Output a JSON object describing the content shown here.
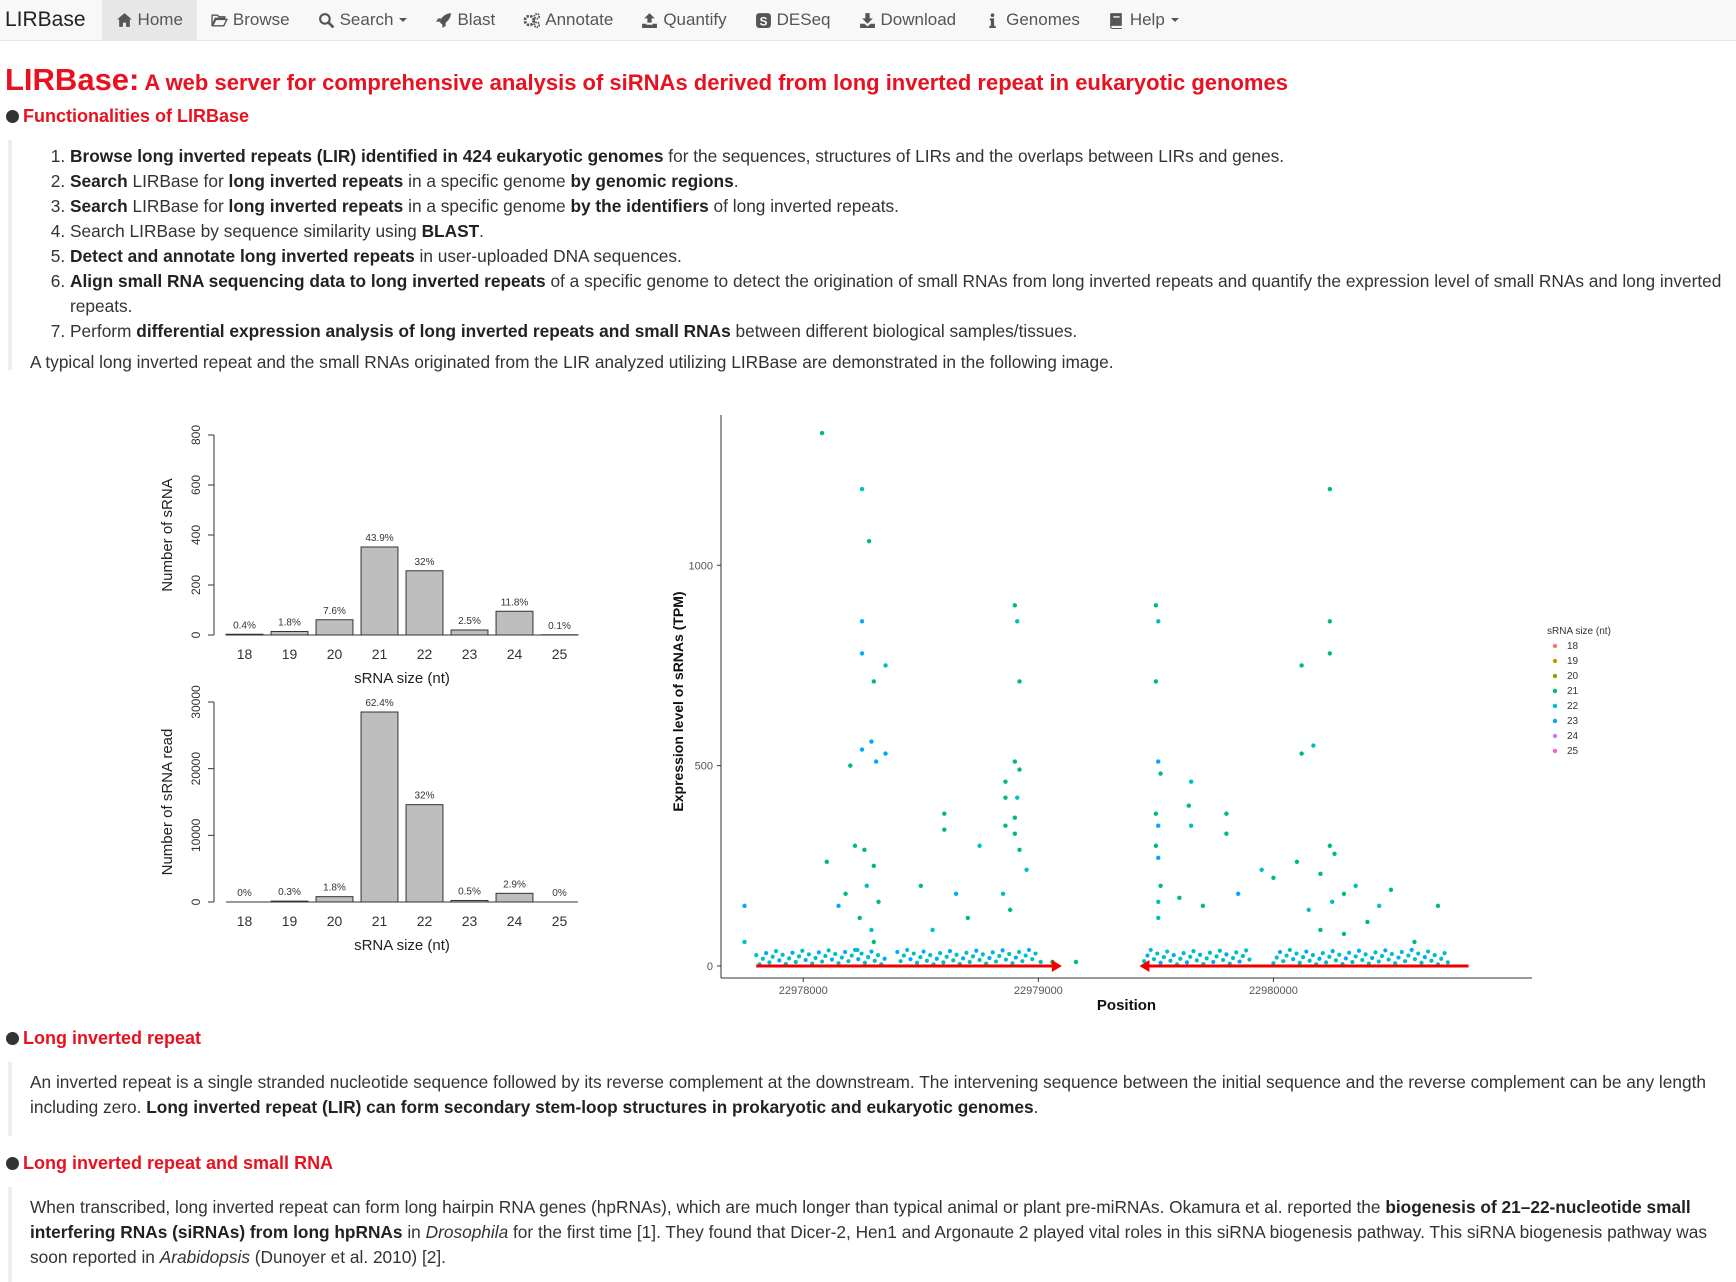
{
  "nav": {
    "brand": "LIRBase",
    "items": [
      {
        "label": "Home",
        "icon": "home-icon",
        "active": true
      },
      {
        "label": "Browse",
        "icon": "folder-open-icon"
      },
      {
        "label": "Search",
        "icon": "search-icon",
        "dropdown": true
      },
      {
        "label": "Blast",
        "icon": "rocket-icon"
      },
      {
        "label": "Annotate",
        "icon": "cogs-icon"
      },
      {
        "label": "Quantify",
        "icon": "upload-icon"
      },
      {
        "label": "DESeq",
        "icon": "deseq-icon"
      },
      {
        "label": "Download",
        "icon": "download-icon"
      },
      {
        "label": "Genomes",
        "icon": "info-icon"
      },
      {
        "label": "Help",
        "icon": "book-icon",
        "dropdown": true
      }
    ]
  },
  "title": {
    "main": "LIRBase:",
    "sub": "A web server for comprehensive analysis of siRNAs derived from long inverted repeat in eukaryotic genomes"
  },
  "functionalities": {
    "heading": "Functionalities of LIRBase",
    "items": [
      [
        "b:Browse long inverted repeats (LIR) identified in 424 eukaryotic genomes",
        " for the sequences, structures of LIRs and the overlaps between LIRs and genes."
      ],
      [
        "b:Search",
        " LIRBase for ",
        "b:long inverted repeats",
        " in a specific genome ",
        "b:by genomic regions",
        "."
      ],
      [
        "b:Search",
        " LIRBase for ",
        "b:long inverted repeats",
        " in a specific genome ",
        "b:by the identifiers",
        " of long inverted repeats."
      ],
      [
        "Search LIRBase by sequence similarity using ",
        "b:BLAST",
        "."
      ],
      [
        "b:Detect and annotate long inverted repeats",
        " in user-uploaded DNA sequences."
      ],
      [
        "b:Align small RNA sequencing data to long inverted repeats",
        " of a specific genome to detect the origination of small RNAs from long inverted repeats and quantify the expression level of small RNAs and long inverted repeats."
      ],
      [
        "Perform ",
        "b:differential expression analysis of long inverted repeats and small RNAs",
        " between different biological samples/tissues."
      ]
    ],
    "note": "A typical long inverted repeat and the small RNAs originated from the LIR analyzed utilizing LIRBase are demonstrated in the following image."
  },
  "chart_data": [
    {
      "type": "bar",
      "categories": [
        "18",
        "19",
        "20",
        "21",
        "22",
        "23",
        "24",
        "25"
      ],
      "values": [
        3,
        14,
        61,
        352,
        257,
        20,
        95,
        1
      ],
      "labels": [
        "0.4%",
        "1.8%",
        "7.6%",
        "43.9%",
        "32%",
        "2.5%",
        "11.8%",
        "0.1%"
      ],
      "xlabel": "sRNA size (nt)",
      "ylabel": "Number of sRNA",
      "ylim": [
        0,
        800
      ],
      "yticks": [
        0,
        200,
        400,
        600,
        800
      ]
    },
    {
      "type": "bar",
      "categories": [
        "18",
        "19",
        "20",
        "21",
        "22",
        "23",
        "24",
        "25"
      ],
      "values": [
        0,
        130,
        800,
        28500,
        14600,
        230,
        1300,
        0
      ],
      "labels": [
        "0%",
        "0.3%",
        "1.8%",
        "62.4%",
        "32%",
        "0.5%",
        "2.9%",
        "0%"
      ],
      "xlabel": "sRNA size (nt)",
      "ylabel": "Number of sRNA read",
      "ylim": [
        0,
        30000
      ],
      "yticks": [
        0,
        10000,
        20000,
        30000
      ]
    },
    {
      "type": "scatter",
      "xlabel": "Position",
      "ylabel": "Expression level of sRNAs (TPM)",
      "xlim": [
        22977650,
        22981100
      ],
      "ylim": [
        -30,
        1350
      ],
      "xticks": [
        22978000,
        22979000,
        22980000
      ],
      "yticks": [
        0,
        500,
        1000
      ],
      "legend_title": "sRNA size (nt)",
      "legend_position": "right",
      "series": [
        {
          "name": "18",
          "color": "#f8766d"
        },
        {
          "name": "19",
          "color": "#cd9600"
        },
        {
          "name": "20",
          "color": "#7cae00"
        },
        {
          "name": "21",
          "color": "#00be67"
        },
        {
          "name": "22",
          "color": "#00bfc4"
        },
        {
          "name": "23",
          "color": "#00a9ff"
        },
        {
          "name": "24",
          "color": "#c77cff"
        },
        {
          "name": "25",
          "color": "#ff61cc"
        }
      ],
      "points": [
        [
          22978080,
          1330
        ],
        [
          22978250,
          1190
        ],
        [
          22978280,
          1060
        ],
        [
          22978250,
          860
        ],
        [
          22978250,
          780
        ],
        [
          22978350,
          750
        ],
        [
          22978300,
          710
        ],
        [
          22978290,
          560
        ],
        [
          22978350,
          530
        ],
        [
          22978250,
          540
        ],
        [
          22978310,
          510
        ],
        [
          22978200,
          500
        ],
        [
          22978220,
          300
        ],
        [
          22978260,
          290
        ],
        [
          22978300,
          250
        ],
        [
          22978270,
          200
        ],
        [
          22978180,
          180
        ],
        [
          22978320,
          160
        ],
        [
          22978240,
          120
        ],
        [
          22978290,
          90
        ],
        [
          22978300,
          60
        ],
        [
          22978230,
          40
        ],
        [
          22978100,
          260
        ],
        [
          22978150,
          150
        ],
        [
          22977750,
          150
        ],
        [
          22977750,
          60
        ],
        [
          22978600,
          380
        ],
        [
          22978600,
          340
        ],
        [
          22978500,
          200
        ],
        [
          22978650,
          180
        ],
        [
          22978750,
          300
        ],
        [
          22978700,
          120
        ],
        [
          22978550,
          90
        ],
        [
          22978900,
          900
        ],
        [
          22978910,
          860
        ],
        [
          22978920,
          710
        ],
        [
          22978900,
          510
        ],
        [
          22978920,
          490
        ],
        [
          22978910,
          420
        ],
        [
          22978900,
          370
        ],
        [
          22978900,
          330
        ],
        [
          22978920,
          290
        ],
        [
          22978860,
          460
        ],
        [
          22978860,
          420
        ],
        [
          22978860,
          350
        ],
        [
          22978850,
          180
        ],
        [
          22978950,
          240
        ],
        [
          22978880,
          140
        ],
        [
          22979010,
          10
        ],
        [
          22979060,
          10
        ],
        [
          22979160,
          10
        ],
        [
          22979500,
          900
        ],
        [
          22979510,
          860
        ],
        [
          22979500,
          710
        ],
        [
          22979510,
          510
        ],
        [
          22979520,
          480
        ],
        [
          22979500,
          380
        ],
        [
          22979510,
          350
        ],
        [
          22979500,
          300
        ],
        [
          22979510,
          270
        ],
        [
          22979520,
          200
        ],
        [
          22979510,
          160
        ],
        [
          22979510,
          120
        ],
        [
          22979650,
          460
        ],
        [
          22979640,
          400
        ],
        [
          22979650,
          350
        ],
        [
          22979600,
          170
        ],
        [
          22979700,
          150
        ],
        [
          22979800,
          380
        ],
        [
          22979800,
          330
        ],
        [
          22979850,
          180
        ],
        [
          22979950,
          240
        ],
        [
          22980000,
          220
        ],
        [
          22980240,
          1190
        ],
        [
          22980240,
          860
        ],
        [
          22980240,
          780
        ],
        [
          22980120,
          750
        ],
        [
          22980170,
          550
        ],
        [
          22980120,
          530
        ],
        [
          22980240,
          300
        ],
        [
          22980260,
          280
        ],
        [
          22980100,
          260
        ],
        [
          22980200,
          230
        ],
        [
          22980300,
          180
        ],
        [
          22980350,
          200
        ],
        [
          22980250,
          160
        ],
        [
          22980150,
          140
        ],
        [
          22980400,
          110
        ],
        [
          22980450,
          150
        ],
        [
          22980500,
          190
        ],
        [
          22980700,
          150
        ],
        [
          22980200,
          90
        ],
        [
          22980300,
          80
        ],
        [
          22980600,
          60
        ]
      ]
    }
  ],
  "lir_section": {
    "heading": "Long inverted repeat",
    "text": [
      "An inverted repeat is a single stranded nucleotide sequence followed by its reverse complement at the downstream. The intervening sequence between the initial sequence and the reverse complement can be any length including zero. ",
      "b:Long inverted repeat (LIR) can form secondary stem-loop structures in prokaryotic and eukaryotic genomes",
      "."
    ]
  },
  "lir_srna_section": {
    "heading": "Long inverted repeat and small RNA",
    "text": [
      "When transcribed, long inverted repeat can form long hairpin RNA genes (hpRNAs), which are much longer than typical animal or plant pre-miRNAs. Okamura et al. reported the ",
      "b:biogenesis of 21–22-nucleotide small interfering RNAs (siRNAs) from long hpRNAs",
      " in ",
      "i:Drosophila",
      " for the first time [1]. They found that Dicer-2, Hen1 and Argonaute 2 played vital roles in this siRNA biogenesis pathway. This siRNA biogenesis pathway was soon reported in ",
      "i:Arabidopsis",
      " (Dunoyer et al. 2010) [2]."
    ]
  }
}
